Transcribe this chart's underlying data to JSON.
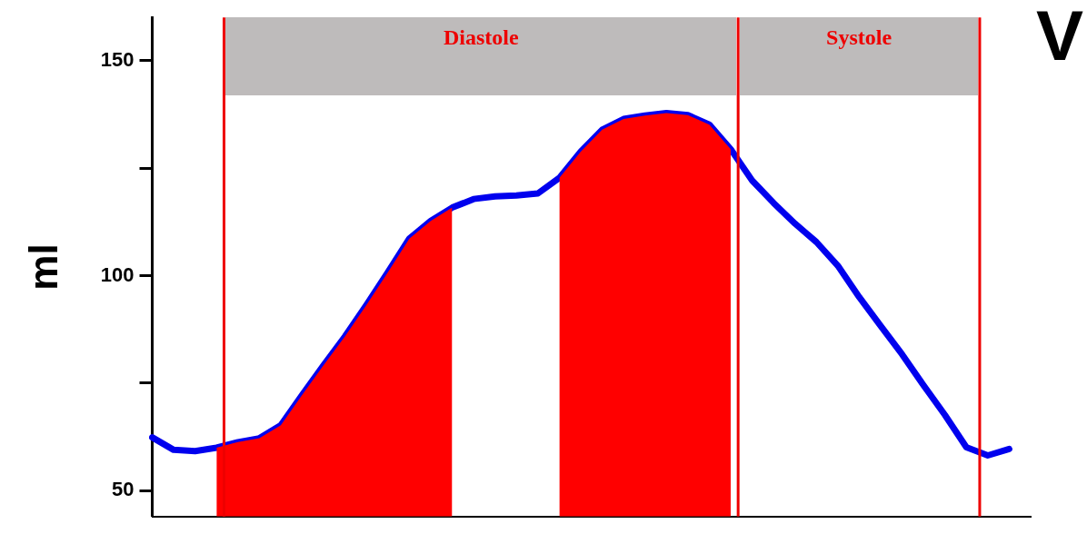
{
  "chart_data": {
    "type": "line",
    "ylabel": "ml",
    "annotations": [
      "Diastole",
      "Systole",
      "V"
    ],
    "categories": [
      null,
      null,
      null,
      null,
      null,
      null,
      null,
      null,
      null,
      null,
      null,
      null,
      null,
      null,
      null,
      null,
      null,
      null,
      null,
      null,
      null,
      null,
      null,
      null,
      null,
      null,
      null,
      null,
      null,
      null,
      null,
      null,
      null,
      null,
      null,
      null,
      null,
      null,
      null,
      null,
      null,
      null
    ],
    "ylim": [
      44,
      160
    ],
    "yticks": [
      50,
      {
        "value": 75,
        "label": null
      },
      100,
      {
        "value": 125,
        "label": null
      },
      150
    ],
    "tick_labels": "y",
    "grid": false,
    "legend": false,
    "marker": "none",
    "line_style": "solid",
    "series": [
      {
        "type": "area",
        "color": "#ff0000",
        "values": [
          null,
          null,
          null,
          60.0,
          61.3,
          62.2,
          65.2,
          72.3,
          79.2,
          85.9,
          93.2,
          100.8,
          108.6,
          112.7,
          115.8,
          null,
          null,
          null,
          null,
          null,
          null,
          null,
          null,
          null,
          null,
          null,
          null,
          null,
          null,
          null,
          null,
          null,
          null,
          null,
          null,
          null,
          null,
          null,
          null,
          null,
          null,
          null
        ]
      },
      {
        "type": "area",
        "color": "#ff0000",
        "values": [
          null,
          null,
          null,
          null,
          null,
          null,
          null,
          null,
          null,
          null,
          null,
          null,
          null,
          null,
          null,
          null,
          null,
          null,
          null,
          122.7,
          128.8,
          133.9,
          136.4,
          137.2,
          137.8,
          137.3,
          135.1,
          129.4,
          null,
          null,
          null,
          null,
          null,
          null,
          null,
          null,
          null,
          null,
          null,
          null,
          null,
          null
        ]
      },
      {
        "type": "line",
        "color": "#0000ee",
        "values": [
          62.4,
          59.5,
          59.2,
          60.0,
          61.3,
          62.2,
          65.2,
          72.3,
          79.2,
          85.9,
          93.2,
          100.8,
          108.6,
          112.7,
          115.8,
          117.8,
          118.4,
          118.6,
          119.1,
          122.7,
          128.8,
          133.9,
          136.4,
          137.2,
          137.8,
          137.3,
          135.1,
          129.4,
          122.1,
          116.9,
          112.1,
          107.8,
          102.3,
          95.0,
          88.3,
          81.7,
          74.5,
          67.6,
          60.1,
          58.2,
          59.7,
          null
        ]
      }
    ]
  }
}
